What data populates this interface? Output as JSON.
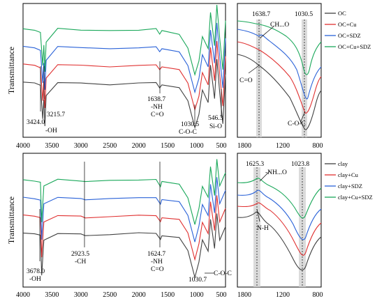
{
  "chart_data": [
    {
      "type": "line",
      "panel": "top-left",
      "ylabel": "Transmittance",
      "xlabel": "",
      "xlim": [
        4000,
        500
      ],
      "x_ticks": [
        "4000",
        "3500",
        "3000",
        "2500",
        "2000",
        "1500",
        "1000",
        "500"
      ],
      "series": [
        {
          "name": "OC",
          "color": "#404040",
          "offset": 0,
          "values": [
            [
              4000,
              45
            ],
            [
              3800,
              44
            ],
            [
              3700,
              42
            ],
            [
              3660,
              12
            ],
            [
              3640,
              30
            ],
            [
              3622,
              6
            ],
            [
              3600,
              33
            ],
            [
              3400,
              45
            ],
            [
              3000,
              44
            ],
            [
              2500,
              43
            ],
            [
              2000,
              44
            ],
            [
              1700,
              45
            ],
            [
              1638,
              40
            ],
            [
              1600,
              43
            ],
            [
              1300,
              40
            ],
            [
              1150,
              28
            ],
            [
              1030,
              4
            ],
            [
              960,
              16
            ],
            [
              900,
              38
            ],
            [
              800,
              27
            ],
            [
              760,
              60
            ],
            [
              690,
              30
            ],
            [
              650,
              66
            ],
            [
              600,
              36
            ],
            [
              546,
              8
            ],
            [
              500,
              52
            ]
          ]
        },
        {
          "name": "OC+Cu",
          "color": "#e03030",
          "offset": 16,
          "values": [
            [
              4000,
              45
            ],
            [
              3800,
              44
            ],
            [
              3700,
              42
            ],
            [
              3660,
              12
            ],
            [
              3640,
              30
            ],
            [
              3622,
              6
            ],
            [
              3600,
              33
            ],
            [
              3400,
              45
            ],
            [
              3000,
              44
            ],
            [
              2500,
              43
            ],
            [
              2000,
              44
            ],
            [
              1700,
              45
            ],
            [
              1638,
              40
            ],
            [
              1600,
              43
            ],
            [
              1300,
              40
            ],
            [
              1150,
              28
            ],
            [
              1030,
              4
            ],
            [
              960,
              16
            ],
            [
              900,
              38
            ],
            [
              800,
              27
            ],
            [
              760,
              60
            ],
            [
              690,
              30
            ],
            [
              650,
              66
            ],
            [
              600,
              36
            ],
            [
              546,
              8
            ],
            [
              500,
              52
            ]
          ]
        },
        {
          "name": "OC+SDZ",
          "color": "#2a62d8",
          "offset": 32,
          "values": [
            [
              4000,
              45
            ],
            [
              3800,
              44
            ],
            [
              3700,
              42
            ],
            [
              3660,
              12
            ],
            [
              3640,
              30
            ],
            [
              3622,
              6
            ],
            [
              3600,
              33
            ],
            [
              3400,
              45
            ],
            [
              3000,
              44
            ],
            [
              2500,
              43
            ],
            [
              2000,
              44
            ],
            [
              1700,
              45
            ],
            [
              1638,
              40
            ],
            [
              1600,
              43
            ],
            [
              1300,
              40
            ],
            [
              1150,
              28
            ],
            [
              1030,
              4
            ],
            [
              960,
              16
            ],
            [
              900,
              38
            ],
            [
              800,
              27
            ],
            [
              760,
              60
            ],
            [
              690,
              30
            ],
            [
              650,
              66
            ],
            [
              600,
              36
            ],
            [
              546,
              8
            ],
            [
              500,
              52
            ]
          ]
        },
        {
          "name": "OC+Cu+SDZ",
          "color": "#1aa85a",
          "offset": 48,
          "values": [
            [
              4000,
              45
            ],
            [
              3800,
              44
            ],
            [
              3700,
              42
            ],
            [
              3660,
              12
            ],
            [
              3640,
              30
            ],
            [
              3622,
              6
            ],
            [
              3600,
              33
            ],
            [
              3400,
              45
            ],
            [
              3000,
              44
            ],
            [
              2500,
              43
            ],
            [
              2000,
              44
            ],
            [
              1700,
              45
            ],
            [
              1638,
              40
            ],
            [
              1600,
              43
            ],
            [
              1300,
              40
            ],
            [
              1150,
              28
            ],
            [
              1030,
              4
            ],
            [
              960,
              16
            ],
            [
              900,
              38
            ],
            [
              800,
              27
            ],
            [
              760,
              60
            ],
            [
              690,
              30
            ],
            [
              650,
              66
            ],
            [
              600,
              36
            ],
            [
              546,
              8
            ],
            [
              500,
              52
            ]
          ]
        }
      ],
      "annotations": [
        "3424.0",
        "3215.7",
        "-OH",
        "1638.7",
        "-NH",
        "C=O",
        "1030.5",
        "C-O-C",
        "546.3",
        "Si-O"
      ]
    },
    {
      "type": "line",
      "panel": "top-right",
      "xlim": [
        1800,
        800
      ],
      "x_ticks": [
        "1800",
        "1200",
        "800"
      ],
      "legend": [
        "OC",
        "OC+Cu",
        "OC+SDZ",
        "OC+Cu+SDZ"
      ],
      "annotations": [
        "1638.7",
        "1030.5",
        "CH...O",
        "C=O",
        "C-O-C"
      ]
    },
    {
      "type": "line",
      "panel": "bottom-left",
      "ylabel": "Transmittance",
      "xlim": [
        4000,
        500
      ],
      "x_ticks": [
        "4000",
        "3500",
        "3000",
        "2500",
        "2000",
        "1500",
        "1000",
        "500"
      ],
      "series": [
        {
          "name": "clay",
          "color": "#404040",
          "offset": 0,
          "values": [
            [
              4000,
              44
            ],
            [
              3800,
              43
            ],
            [
              3700,
              42
            ],
            [
              3678,
              6
            ],
            [
              3640,
              38
            ],
            [
              3400,
              44
            ],
            [
              3000,
              43
            ],
            [
              2923,
              42
            ],
            [
              2500,
              43
            ],
            [
              2000,
              44
            ],
            [
              1700,
              44
            ],
            [
              1625,
              38
            ],
            [
              1600,
              42
            ],
            [
              1300,
              40
            ],
            [
              1150,
              28
            ],
            [
              1030,
              4
            ],
            [
              960,
              18
            ],
            [
              900,
              38
            ],
            [
              800,
              28
            ],
            [
              760,
              56
            ],
            [
              690,
              30
            ],
            [
              650,
              62
            ],
            [
              600,
              38
            ],
            [
              500,
              50
            ]
          ]
        },
        {
          "name": "clay+Cu",
          "color": "#e03030",
          "offset": 16,
          "values": [
            [
              4000,
              44
            ],
            [
              3800,
              43
            ],
            [
              3700,
              42
            ],
            [
              3678,
              6
            ],
            [
              3640,
              38
            ],
            [
              3400,
              44
            ],
            [
              3000,
              43
            ],
            [
              2923,
              42
            ],
            [
              2500,
              43
            ],
            [
              2000,
              44
            ],
            [
              1700,
              44
            ],
            [
              1625,
              38
            ],
            [
              1600,
              42
            ],
            [
              1300,
              40
            ],
            [
              1150,
              28
            ],
            [
              1030,
              4
            ],
            [
              960,
              18
            ],
            [
              900,
              38
            ],
            [
              800,
              28
            ],
            [
              760,
              56
            ],
            [
              690,
              30
            ],
            [
              650,
              62
            ],
            [
              600,
              38
            ],
            [
              500,
              50
            ]
          ]
        },
        {
          "name": "clay+SDZ",
          "color": "#2a62d8",
          "offset": 32,
          "values": [
            [
              4000,
              44
            ],
            [
              3800,
              43
            ],
            [
              3700,
              42
            ],
            [
              3678,
              6
            ],
            [
              3640,
              38
            ],
            [
              3400,
              44
            ],
            [
              3000,
              43
            ],
            [
              2923,
              42
            ],
            [
              2500,
              43
            ],
            [
              2000,
              44
            ],
            [
              1700,
              44
            ],
            [
              1625,
              38
            ],
            [
              1600,
              42
            ],
            [
              1300,
              40
            ],
            [
              1150,
              28
            ],
            [
              1030,
              4
            ],
            [
              960,
              18
            ],
            [
              900,
              38
            ],
            [
              800,
              28
            ],
            [
              760,
              56
            ],
            [
              690,
              30
            ],
            [
              650,
              62
            ],
            [
              600,
              38
            ],
            [
              500,
              50
            ]
          ]
        },
        {
          "name": "clay+Cu+SDZ",
          "color": "#1aa85a",
          "offset": 48,
          "values": [
            [
              4000,
              44
            ],
            [
              3800,
              43
            ],
            [
              3700,
              42
            ],
            [
              3678,
              6
            ],
            [
              3640,
              38
            ],
            [
              3400,
              44
            ],
            [
              3000,
              43
            ],
            [
              2923,
              42
            ],
            [
              2500,
              43
            ],
            [
              2000,
              44
            ],
            [
              1700,
              44
            ],
            [
              1625,
              38
            ],
            [
              1600,
              42
            ],
            [
              1300,
              40
            ],
            [
              1150,
              28
            ],
            [
              1030,
              4
            ],
            [
              960,
              18
            ],
            [
              900,
              38
            ],
            [
              800,
              28
            ],
            [
              760,
              56
            ],
            [
              690,
              30
            ],
            [
              650,
              62
            ],
            [
              600,
              38
            ],
            [
              500,
              50
            ]
          ]
        }
      ],
      "annotations": [
        "3678.0",
        "-OH",
        "2923.5",
        "-CH",
        "1624.7",
        "-NH",
        "C=O",
        "1030.7",
        "C-O-C"
      ]
    },
    {
      "type": "line",
      "panel": "bottom-right",
      "xlim": [
        1800,
        800
      ],
      "x_ticks": [
        "1800",
        "1200",
        "800"
      ],
      "legend": [
        "clay",
        "clay+Cu",
        "clay+SDZ",
        "clay+Cu+SDZ"
      ],
      "annotations": [
        "1625.3",
        "1023.8",
        "-NH...O",
        "N-H"
      ]
    }
  ]
}
